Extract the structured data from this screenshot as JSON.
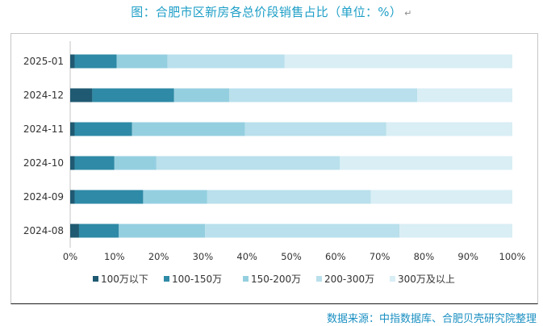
{
  "page": {
    "title": "图：合肥市区新房各总价段销售占比（单位：%）",
    "title_mark": "↵",
    "source": "数据来源：中指数据库、合肥贝壳研究院整理"
  },
  "chart_data": {
    "type": "bar",
    "orientation": "horizontal",
    "stacked": "percent",
    "title": "图：合肥市区新房各总价段销售占比（单位：%）",
    "categories": [
      "2025-01",
      "2024-12",
      "2024-11",
      "2024-10",
      "2024-09",
      "2024-08"
    ],
    "series": [
      {
        "name": "100万以下",
        "color": "#1f5a72",
        "values": [
          1,
          5,
          1,
          1,
          1,
          2
        ]
      },
      {
        "name": "100-150万",
        "color": "#2e8aa6",
        "values": [
          9.5,
          18.5,
          13,
          9,
          15.5,
          9
        ]
      },
      {
        "name": "150-200万",
        "color": "#94cfe0",
        "values": [
          11.5,
          12.5,
          25.5,
          9.5,
          14.5,
          19.5
        ]
      },
      {
        "name": "200-300万",
        "color": "#b9e0ec",
        "values": [
          26.5,
          42.5,
          32,
          41.5,
          37,
          44
        ]
      },
      {
        "name": "300万及以上",
        "color": "#d9eef5",
        "values": [
          51.5,
          21.5,
          28.5,
          39,
          32,
          25.5
        ]
      }
    ],
    "xlim": [
      0,
      100
    ],
    "x_ticks": [
      "0%",
      "10%",
      "20%",
      "30%",
      "40%",
      "50%",
      "60%",
      "70%",
      "80%",
      "90%",
      "100%"
    ],
    "grid": false,
    "legend_position": "bottom"
  }
}
